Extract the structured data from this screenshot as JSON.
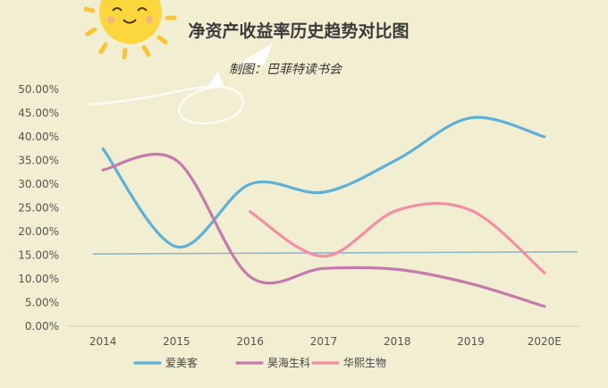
{
  "chart_data": {
    "type": "line",
    "title": "净资产收益率历史趋势对比图",
    "subtitle": "制图：巴菲特读书会",
    "categories": [
      "2014",
      "2015",
      "2016",
      "2017",
      "2018",
      "2019",
      "2020E"
    ],
    "y_tick_labels": [
      "0.00%",
      "5.00%",
      "10.00%",
      "15.00%",
      "20.00%",
      "25.00%",
      "30.00%",
      "35.00%",
      "40.00%",
      "45.00%",
      "50.00%"
    ],
    "ylim": [
      0,
      50
    ],
    "grid": false,
    "legend_position": "bottom",
    "smooth": true,
    "series": [
      {
        "name": "爱美客",
        "color": "#5fb0d8",
        "values": [
          37.5,
          16.8,
          30.0,
          28.3,
          35.2,
          44.0,
          40.0
        ]
      },
      {
        "name": "昊海生科",
        "color": "#c47aab",
        "values": [
          33.0,
          35.0,
          10.5,
          12.2,
          12.0,
          9.0,
          4.2
        ]
      },
      {
        "name": "华熙生物",
        "color": "#f28fa5",
        "values": [
          null,
          null,
          24.2,
          14.8,
          24.5,
          24.5,
          11.3
        ]
      }
    ],
    "reference_line": {
      "value": 15.5,
      "color": "#8eb8c9"
    },
    "decorations": {
      "sun": "sun-icon",
      "cloud": "cloud-doodle"
    }
  }
}
